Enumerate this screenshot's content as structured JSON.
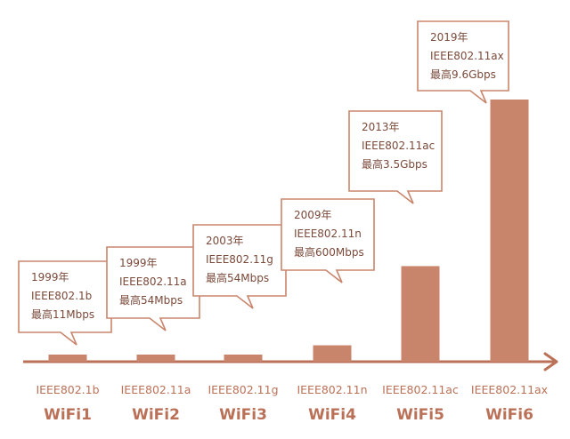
{
  "colors": {
    "bar": "#C9856C",
    "axis": "#BA7158",
    "text": "#BA7158",
    "callout_border": "#C9856C",
    "callout_text": "#7A4A3A"
  },
  "chart_data": {
    "type": "bar",
    "title": "",
    "xlabel": "",
    "ylabel": "",
    "ylim": [
      0,
      9.6
    ],
    "grid": false,
    "categories": [
      "WiFi1",
      "WiFi2",
      "WiFi3",
      "WiFi4",
      "WiFi5",
      "WiFi6"
    ],
    "standards": [
      "IEEE802.1b",
      "IEEE802.11a",
      "IEEE802.11g",
      "IEEE802.11n",
      "IEEE802.11ac",
      "IEEE802.11ax"
    ],
    "values": [
      0.011,
      0.054,
      0.054,
      0.6,
      3.5,
      9.6
    ],
    "annotations": [
      {
        "year": "1999年",
        "standard": "IEEE802.1b",
        "speed": "最高11Mbps"
      },
      {
        "year": "1999年",
        "standard": "IEEE802.11a",
        "speed": "最高54Mbps"
      },
      {
        "year": "2003年",
        "standard": "IEEE802.11g",
        "speed": "最高54Mbps"
      },
      {
        "year": "2009年",
        "standard": "IEEE802.11n",
        "speed": "最高600Mbps"
      },
      {
        "year": "2013年",
        "standard": "IEEE802.11ac",
        "speed": "最高3.5Gbps"
      },
      {
        "year": "2019年",
        "standard": "IEEE802.11ax",
        "speed": "最高9.6Gbps"
      }
    ]
  }
}
